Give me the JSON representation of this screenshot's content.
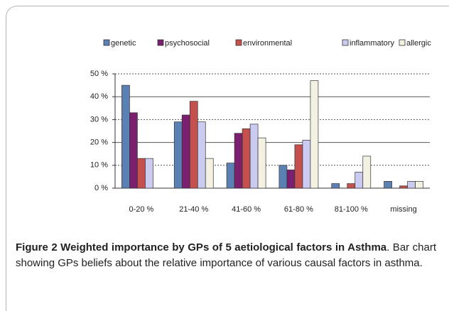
{
  "chart_data": {
    "type": "bar",
    "categories": [
      "0-20 %",
      "21-40 %",
      "41-60 %",
      "61-80 %",
      "81-100 %",
      "missing"
    ],
    "series": [
      {
        "name": "genetic",
        "color": "#5b80b4",
        "values": [
          45,
          29,
          11,
          10,
          2,
          3
        ]
      },
      {
        "name": "psychosocial",
        "color": "#7b1f6f",
        "values": [
          33,
          32,
          24,
          8,
          0,
          0
        ]
      },
      {
        "name": "environmental",
        "color": "#c4514d",
        "values": [
          13,
          38,
          26,
          19,
          2,
          1
        ]
      },
      {
        "name": "inflammatory",
        "color": "#cbcaf0",
        "values": [
          13,
          29,
          28,
          21,
          7,
          3
        ]
      },
      {
        "name": "allergic",
        "color": "#f3f2e2",
        "values": [
          0,
          13,
          22,
          47,
          14,
          3
        ]
      }
    ],
    "ylim": [
      0,
      50
    ],
    "yticks": [
      {
        "value": 0,
        "label": "0 %"
      },
      {
        "value": 10,
        "label": "10 %"
      },
      {
        "value": 20,
        "label": "20 %"
      },
      {
        "value": 30,
        "label": "30 %"
      },
      {
        "value": 40,
        "label": "40 %"
      },
      {
        "value": 50,
        "label": "50 %"
      }
    ],
    "grid": true,
    "legend": "top"
  },
  "caption": {
    "title": "Figure 2 Weighted importance by GPs of 5 aetiological factors in Asthma",
    "text": ". Bar chart showing GPs beliefs about the relative importance of various causal factors in asthma."
  }
}
